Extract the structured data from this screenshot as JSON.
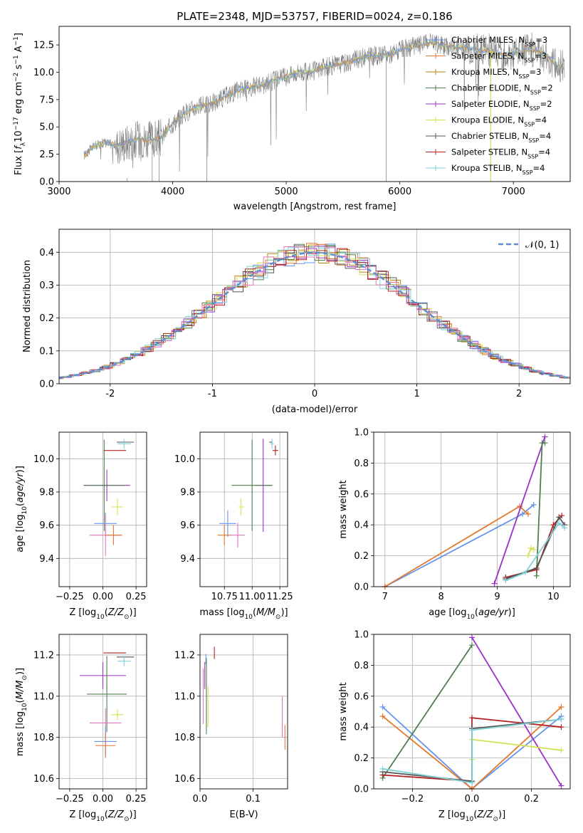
{
  "colors": {
    "chabrier_miles": "#6495ED",
    "salpeter_miles": "#E5772E",
    "kroupa_miles": "#B8860B",
    "chabrier_elodie": "#4F7F4F",
    "salpeter_elodie": "#9B30C8",
    "kroupa_elodie": "#D4E157",
    "chabrier_stelib": "#555555",
    "salpeter_stelib": "#B22222",
    "kroupa_stelib": "#80D0D8",
    "pink": "#E377C2",
    "spectrum": "#808080",
    "grid": "#B0B0B0"
  },
  "chart_data": [
    {
      "id": "spectrum",
      "type": "line",
      "title": "PLATE=2348, MJD=53757, FIBERID=0024, z=0.186",
      "xlabel": "wavelength [Angstrom, rest frame]",
      "ylabel": "Flux [f_λ 10^-17 erg cm^-2 s^-1 A^-1]",
      "xlim": [
        3000,
        7500
      ],
      "ylim": [
        0,
        14.2
      ],
      "xticks": [
        3000,
        4000,
        5000,
        6000,
        7000
      ],
      "yticks": [
        0.0,
        2.5,
        5.0,
        7.5,
        10.0,
        12.5
      ],
      "grid": false,
      "legend_position": "right",
      "legend": [
        {
          "label": "Chabrier MILES, N",
          "sub": "SSP",
          "suffix": "=3",
          "color": "#6495ED"
        },
        {
          "label": "Salpeter MILES, N",
          "sub": "SSP",
          "suffix": "=3",
          "color": "#E5772E"
        },
        {
          "label": "Kroupa MILES, N",
          "sub": "SSP",
          "suffix": "=3",
          "color": "#B8860B"
        },
        {
          "label": "Chabrier ELODIE, N",
          "sub": "SSP",
          "suffix": "=2",
          "color": "#4F7F4F"
        },
        {
          "label": "Salpeter ELODIE, N",
          "sub": "SSP",
          "suffix": "=2",
          "color": "#9B30C8"
        },
        {
          "label": "Kroupa ELODIE, N",
          "sub": "SSP",
          "suffix": "=4",
          "color": "#D4E157"
        },
        {
          "label": "Chabrier STELIB, N",
          "sub": "SSP",
          "suffix": "=4",
          "color": "#555555"
        },
        {
          "label": "Salpeter STELIB, N",
          "sub": "SSP",
          "suffix": "=4",
          "color": "#B22222"
        },
        {
          "label": "Kroupa STELIB, N",
          "sub": "SSP",
          "suffix": "=4",
          "color": "#80D0D8"
        }
      ],
      "continuum": [
        [
          3220,
          2.4
        ],
        [
          3300,
          3.2
        ],
        [
          3400,
          3.6
        ],
        [
          3500,
          3.3
        ],
        [
          3600,
          3.6
        ],
        [
          3700,
          3.9
        ],
        [
          3800,
          3.8
        ],
        [
          3900,
          4.0
        ],
        [
          4000,
          5.3
        ],
        [
          4100,
          6.2
        ],
        [
          4200,
          6.8
        ],
        [
          4300,
          7.0
        ],
        [
          4400,
          7.4
        ],
        [
          4500,
          8.0
        ],
        [
          4600,
          8.4
        ],
        [
          4700,
          8.7
        ],
        [
          4800,
          8.8
        ],
        [
          4900,
          9.3
        ],
        [
          5000,
          9.6
        ],
        [
          5100,
          10.0
        ],
        [
          5200,
          10.0
        ],
        [
          5300,
          10.3
        ],
        [
          5400,
          10.6
        ],
        [
          5500,
          10.8
        ],
        [
          5600,
          11.1
        ],
        [
          5700,
          11.4
        ],
        [
          5800,
          11.5
        ],
        [
          5900,
          11.6
        ],
        [
          6000,
          12.0
        ],
        [
          6100,
          12.3
        ],
        [
          6200,
          12.6
        ],
        [
          6300,
          12.7
        ],
        [
          6400,
          12.4
        ],
        [
          6500,
          12.3
        ],
        [
          6600,
          12.3
        ],
        [
          6700,
          12.0
        ],
        [
          6800,
          12.0
        ],
        [
          6900,
          11.6
        ],
        [
          7000,
          11.7
        ],
        [
          7100,
          12.1
        ],
        [
          7200,
          12.0
        ],
        [
          7300,
          11.5
        ],
        [
          7400,
          10.5
        ]
      ]
    },
    {
      "id": "residuals",
      "type": "line",
      "xlabel": "(data-model)/error",
      "ylabel": "Normed distribution",
      "xlim": [
        -2.5,
        2.5
      ],
      "ylim": [
        0,
        0.47
      ],
      "xticks": [
        -2,
        -1,
        0,
        1,
        2
      ],
      "yticks": [
        0.0,
        0.1,
        0.2,
        0.3,
        0.4
      ],
      "grid": true,
      "legend_position": "top-right",
      "legend": [
        {
          "label": "𝒩(0, 1)",
          "color": "#5B8FD0"
        }
      ],
      "gaussian": {
        "mean": 0,
        "sigma": 1
      }
    },
    {
      "id": "z_age",
      "type": "scatter",
      "xlabel": "Z [log10(Z/Z⊙)]",
      "ylabel": "age  [log10(age/yr)]",
      "xlim": [
        -0.33,
        0.33
      ],
      "ylim": [
        9.23,
        10.16
      ],
      "xticks": [
        -0.25,
        0.0,
        0.25
      ],
      "xticklabels": [
        "−0.25",
        "0.00",
        "0.25"
      ],
      "yticks": [
        9.4,
        9.6,
        9.8,
        10.0
      ],
      "grid": true,
      "points": [
        {
          "x": 0.09,
          "y": 10.05,
          "xerr": 0.17,
          "yerr": 0.0,
          "color": "#B22222"
        },
        {
          "x": 0.17,
          "y": 10.1,
          "xerr": 0.13,
          "yerr": 0.0,
          "color": "#555555"
        },
        {
          "x": 0.16,
          "y": 10.09,
          "xerr": 0.1,
          "yerr": 0.06,
          "color": "#80D0D8"
        },
        {
          "x": 0.03,
          "y": 9.84,
          "xerr": 0.35,
          "yerr": 0.19,
          "color": "#9B30C8"
        },
        {
          "x": 0.01,
          "y": 9.84,
          "xerr": 0.3,
          "yerr": 0.55,
          "color": "#4F7F4F"
        },
        {
          "x": 0.11,
          "y": 9.71,
          "xerr": 0.09,
          "yerr": 0.1,
          "color": "#D4E157"
        },
        {
          "x": 0.02,
          "y": 9.61,
          "xerr": 0.17,
          "yerr": 0.13,
          "color": "#6495ED"
        },
        {
          "x": 0.02,
          "y": 9.54,
          "xerr": 0.24,
          "yerr": 0.25,
          "color": "#E377C2"
        },
        {
          "x": 0.08,
          "y": 9.54,
          "xerr": 0.13,
          "yerr": 0.12,
          "color": "#E5772E"
        }
      ]
    },
    {
      "id": "mass_age",
      "type": "scatter",
      "xlabel": "mass [log10(M/M⊙)]",
      "ylabel": "",
      "xlim": [
        10.53,
        11.32
      ],
      "ylim": [
        9.23,
        10.16
      ],
      "xticks": [
        10.75,
        11.0,
        11.25
      ],
      "xticklabels": [
        "10.75",
        "11.00",
        "11.25"
      ],
      "yticks": [
        9.4,
        9.6,
        9.8,
        10.0
      ],
      "grid": true,
      "points": [
        {
          "x": 11.21,
          "y": 10.05,
          "xerr": 0.05,
          "yerr": 0.06,
          "color": "#B22222"
        },
        {
          "x": 11.17,
          "y": 10.1,
          "xerr": 0.03,
          "yerr": 0.0,
          "color": "#555555"
        },
        {
          "x": 11.18,
          "y": 10.09,
          "xerr": 0.03,
          "yerr": 0.06,
          "color": "#80D0D8"
        },
        {
          "x": 11.1,
          "y": 9.84,
          "xerr": 0.14,
          "yerr": 0.56,
          "color": "#9B30C8"
        },
        {
          "x": 11.0,
          "y": 9.84,
          "xerr": 0.37,
          "yerr": 0.55,
          "color": "#4F7F4F"
        },
        {
          "x": 10.9,
          "y": 9.71,
          "xerr": 0.05,
          "yerr": 0.1,
          "color": "#D4E157"
        },
        {
          "x": 10.78,
          "y": 9.61,
          "xerr": 0.15,
          "yerr": 0.16,
          "color": "#6495ED"
        },
        {
          "x": 10.87,
          "y": 9.54,
          "xerr": 0.13,
          "yerr": 0.15,
          "color": "#E377C2"
        },
        {
          "x": 10.75,
          "y": 9.54,
          "xerr": 0.12,
          "yerr": 0.12,
          "color": "#E5772E"
        }
      ]
    },
    {
      "id": "age_weight",
      "type": "line",
      "xlabel": "age  [log10(age/yr)]",
      "ylabel": "mass weight",
      "xlim": [
        6.8,
        10.3
      ],
      "ylim": [
        0,
        1.0
      ],
      "xticks": [
        7,
        8,
        9,
        10
      ],
      "yticks": [
        0.0,
        0.2,
        0.4,
        0.6,
        0.8,
        1.0
      ],
      "grid": true,
      "series": [
        {
          "color": "#6495ED",
          "x": [
            7.0,
            9.45,
            9.65
          ],
          "y": [
            0.0,
            0.47,
            0.53
          ]
        },
        {
          "color": "#E5772E",
          "x": [
            7.0,
            9.4,
            9.55
          ],
          "y": [
            0.0,
            0.52,
            0.47
          ]
        },
        {
          "color": "#9B30C8",
          "x": [
            8.95,
            9.85
          ],
          "y": [
            0.02,
            0.97
          ]
        },
        {
          "color": "#4F7F4F",
          "x": [
            9.7,
            9.8,
            9.85
          ],
          "y": [
            0.07,
            0.93,
            0.93
          ]
        },
        {
          "color": "#D4E157",
          "x": [
            9.55,
            9.6,
            9.65
          ],
          "y": [
            0.2,
            0.25,
            0.24
          ]
        },
        {
          "color": "#B22222",
          "x": [
            9.15,
            9.7,
            10.0,
            10.15
          ],
          "y": [
            0.06,
            0.11,
            0.4,
            0.46
          ]
        },
        {
          "color": "#555555",
          "x": [
            9.15,
            9.7,
            10.1,
            10.2
          ],
          "y": [
            0.05,
            0.12,
            0.45,
            0.4
          ]
        },
        {
          "color": "#80D0D8",
          "x": [
            9.15,
            9.5,
            10.1,
            10.2
          ],
          "y": [
            0.04,
            0.09,
            0.41,
            0.38
          ]
        }
      ]
    },
    {
      "id": "z_mass",
      "type": "scatter",
      "xlabel": "Z [log10(Z/Z⊙)]",
      "ylabel": "mass [log10(M/M⊙)]",
      "xlim": [
        -0.33,
        0.33
      ],
      "ylim": [
        10.55,
        11.3
      ],
      "xticks": [
        -0.25,
        0.0,
        0.25
      ],
      "xticklabels": [
        "−0.25",
        "0.00",
        "0.25"
      ],
      "yticks": [
        10.6,
        10.8,
        11.0,
        11.2
      ],
      "grid": true,
      "points": [
        {
          "x": 0.09,
          "y": 11.21,
          "xerr": 0.17,
          "yerr": 0.0,
          "color": "#B22222"
        },
        {
          "x": 0.17,
          "y": 11.19,
          "xerr": 0.13,
          "yerr": 0.0,
          "color": "#555555"
        },
        {
          "x": 0.16,
          "y": 11.17,
          "xerr": 0.1,
          "yerr": 0.05,
          "color": "#80D0D8"
        },
        {
          "x": 0.0,
          "y": 11.1,
          "xerr": 0.35,
          "yerr": 0.13,
          "color": "#9B30C8"
        },
        {
          "x": 0.03,
          "y": 11.01,
          "xerr": 0.3,
          "yerr": 0.37,
          "color": "#4F7F4F"
        },
        {
          "x": 0.11,
          "y": 10.91,
          "xerr": 0.09,
          "yerr": 0.05,
          "color": "#D4E157"
        },
        {
          "x": 0.02,
          "y": 10.87,
          "xerr": 0.24,
          "yerr": 0.14,
          "color": "#E377C2"
        },
        {
          "x": 0.02,
          "y": 10.78,
          "xerr": 0.17,
          "yerr": 0.14,
          "color": "#6495ED"
        },
        {
          "x": 0.02,
          "y": 10.76,
          "xerr": 0.15,
          "yerr": 0.12,
          "color": "#E5772E"
        }
      ]
    },
    {
      "id": "ebv_mass",
      "type": "scatter",
      "xlabel": "E(B-V)",
      "ylabel": "",
      "xlim": [
        0,
        0.165
      ],
      "ylim": [
        10.55,
        11.3
      ],
      "xticks": [
        0.0,
        0.1
      ],
      "xticklabels": [
        "0.0",
        "0.1"
      ],
      "yticks": [
        10.6,
        10.8,
        11.0,
        11.2
      ],
      "grid": true,
      "points": [
        {
          "x": 0.027,
          "y": 11.21,
          "xerr": 0,
          "yerr": 0.06,
          "color": "#B22222"
        },
        {
          "x": 0.011,
          "y": 11.18,
          "xerr": 0,
          "yerr": 0.05,
          "color": "#6495ED"
        },
        {
          "x": 0.009,
          "y": 11.1,
          "xerr": 0,
          "yerr": 0.13,
          "color": "#9B30C8"
        },
        {
          "x": 0.006,
          "y": 11.0,
          "xerr": 0,
          "yerr": 0.27,
          "color": "#E377C2"
        },
        {
          "x": 0.012,
          "y": 11.0,
          "xerr": 0,
          "yerr": 0.37,
          "color": "#4F7F4F"
        },
        {
          "x": 0.015,
          "y": 10.95,
          "xerr": 0,
          "yerr": 0.2,
          "color": "#D4E157"
        },
        {
          "x": 0.155,
          "y": 10.9,
          "xerr": 0,
          "yerr": 0.2,
          "color": "#E377C2"
        },
        {
          "x": 0.16,
          "y": 10.8,
          "xerr": 0,
          "yerr": 0.12,
          "color": "#E5772E"
        }
      ]
    },
    {
      "id": "z_weight",
      "type": "line",
      "xlabel": "Z [log10(Z/Z⊙)]",
      "ylabel": "mass weight",
      "xlim": [
        -0.33,
        0.33
      ],
      "ylim": [
        0,
        1.0
      ],
      "xticks": [
        -0.2,
        0.0,
        0.2
      ],
      "xticklabels": [
        "−0.2",
        "0.0",
        "0.2"
      ],
      "yticks": [
        0.0,
        0.2,
        0.4,
        0.6,
        0.8,
        1.0
      ],
      "grid": true,
      "series": [
        {
          "color": "#6495ED",
          "x": [
            -0.3,
            0.0,
            0.3
          ],
          "y": [
            0.53,
            0.0,
            0.47
          ]
        },
        {
          "color": "#E5772E",
          "x": [
            -0.3,
            0.0,
            0.3
          ],
          "y": [
            0.47,
            0.0,
            0.53
          ]
        },
        {
          "color": "#4F7F4F",
          "x": [
            -0.3,
            0.0
          ],
          "y": [
            0.07,
            0.93
          ]
        },
        {
          "color": "#9B30C8",
          "x": [
            0.0,
            0.3
          ],
          "y": [
            0.98,
            0.02
          ]
        },
        {
          "color": "#D4E157",
          "x": [
            0.0,
            0.0,
            0.3
          ],
          "y": [
            0.19,
            0.32,
            0.25
          ]
        },
        {
          "color": "#B22222",
          "x": [
            -0.3,
            0.0,
            0.0,
            0.3
          ],
          "y": [
            0.09,
            0.05,
            0.46,
            0.4
          ]
        },
        {
          "color": "#555555",
          "x": [
            -0.3,
            0.0,
            0.0,
            0.3
          ],
          "y": [
            0.11,
            0.05,
            0.39,
            0.45
          ]
        },
        {
          "color": "#80D0D8",
          "x": [
            -0.3,
            0.0,
            0.0,
            0.3
          ],
          "y": [
            0.13,
            0.04,
            0.38,
            0.45
          ]
        }
      ]
    }
  ]
}
